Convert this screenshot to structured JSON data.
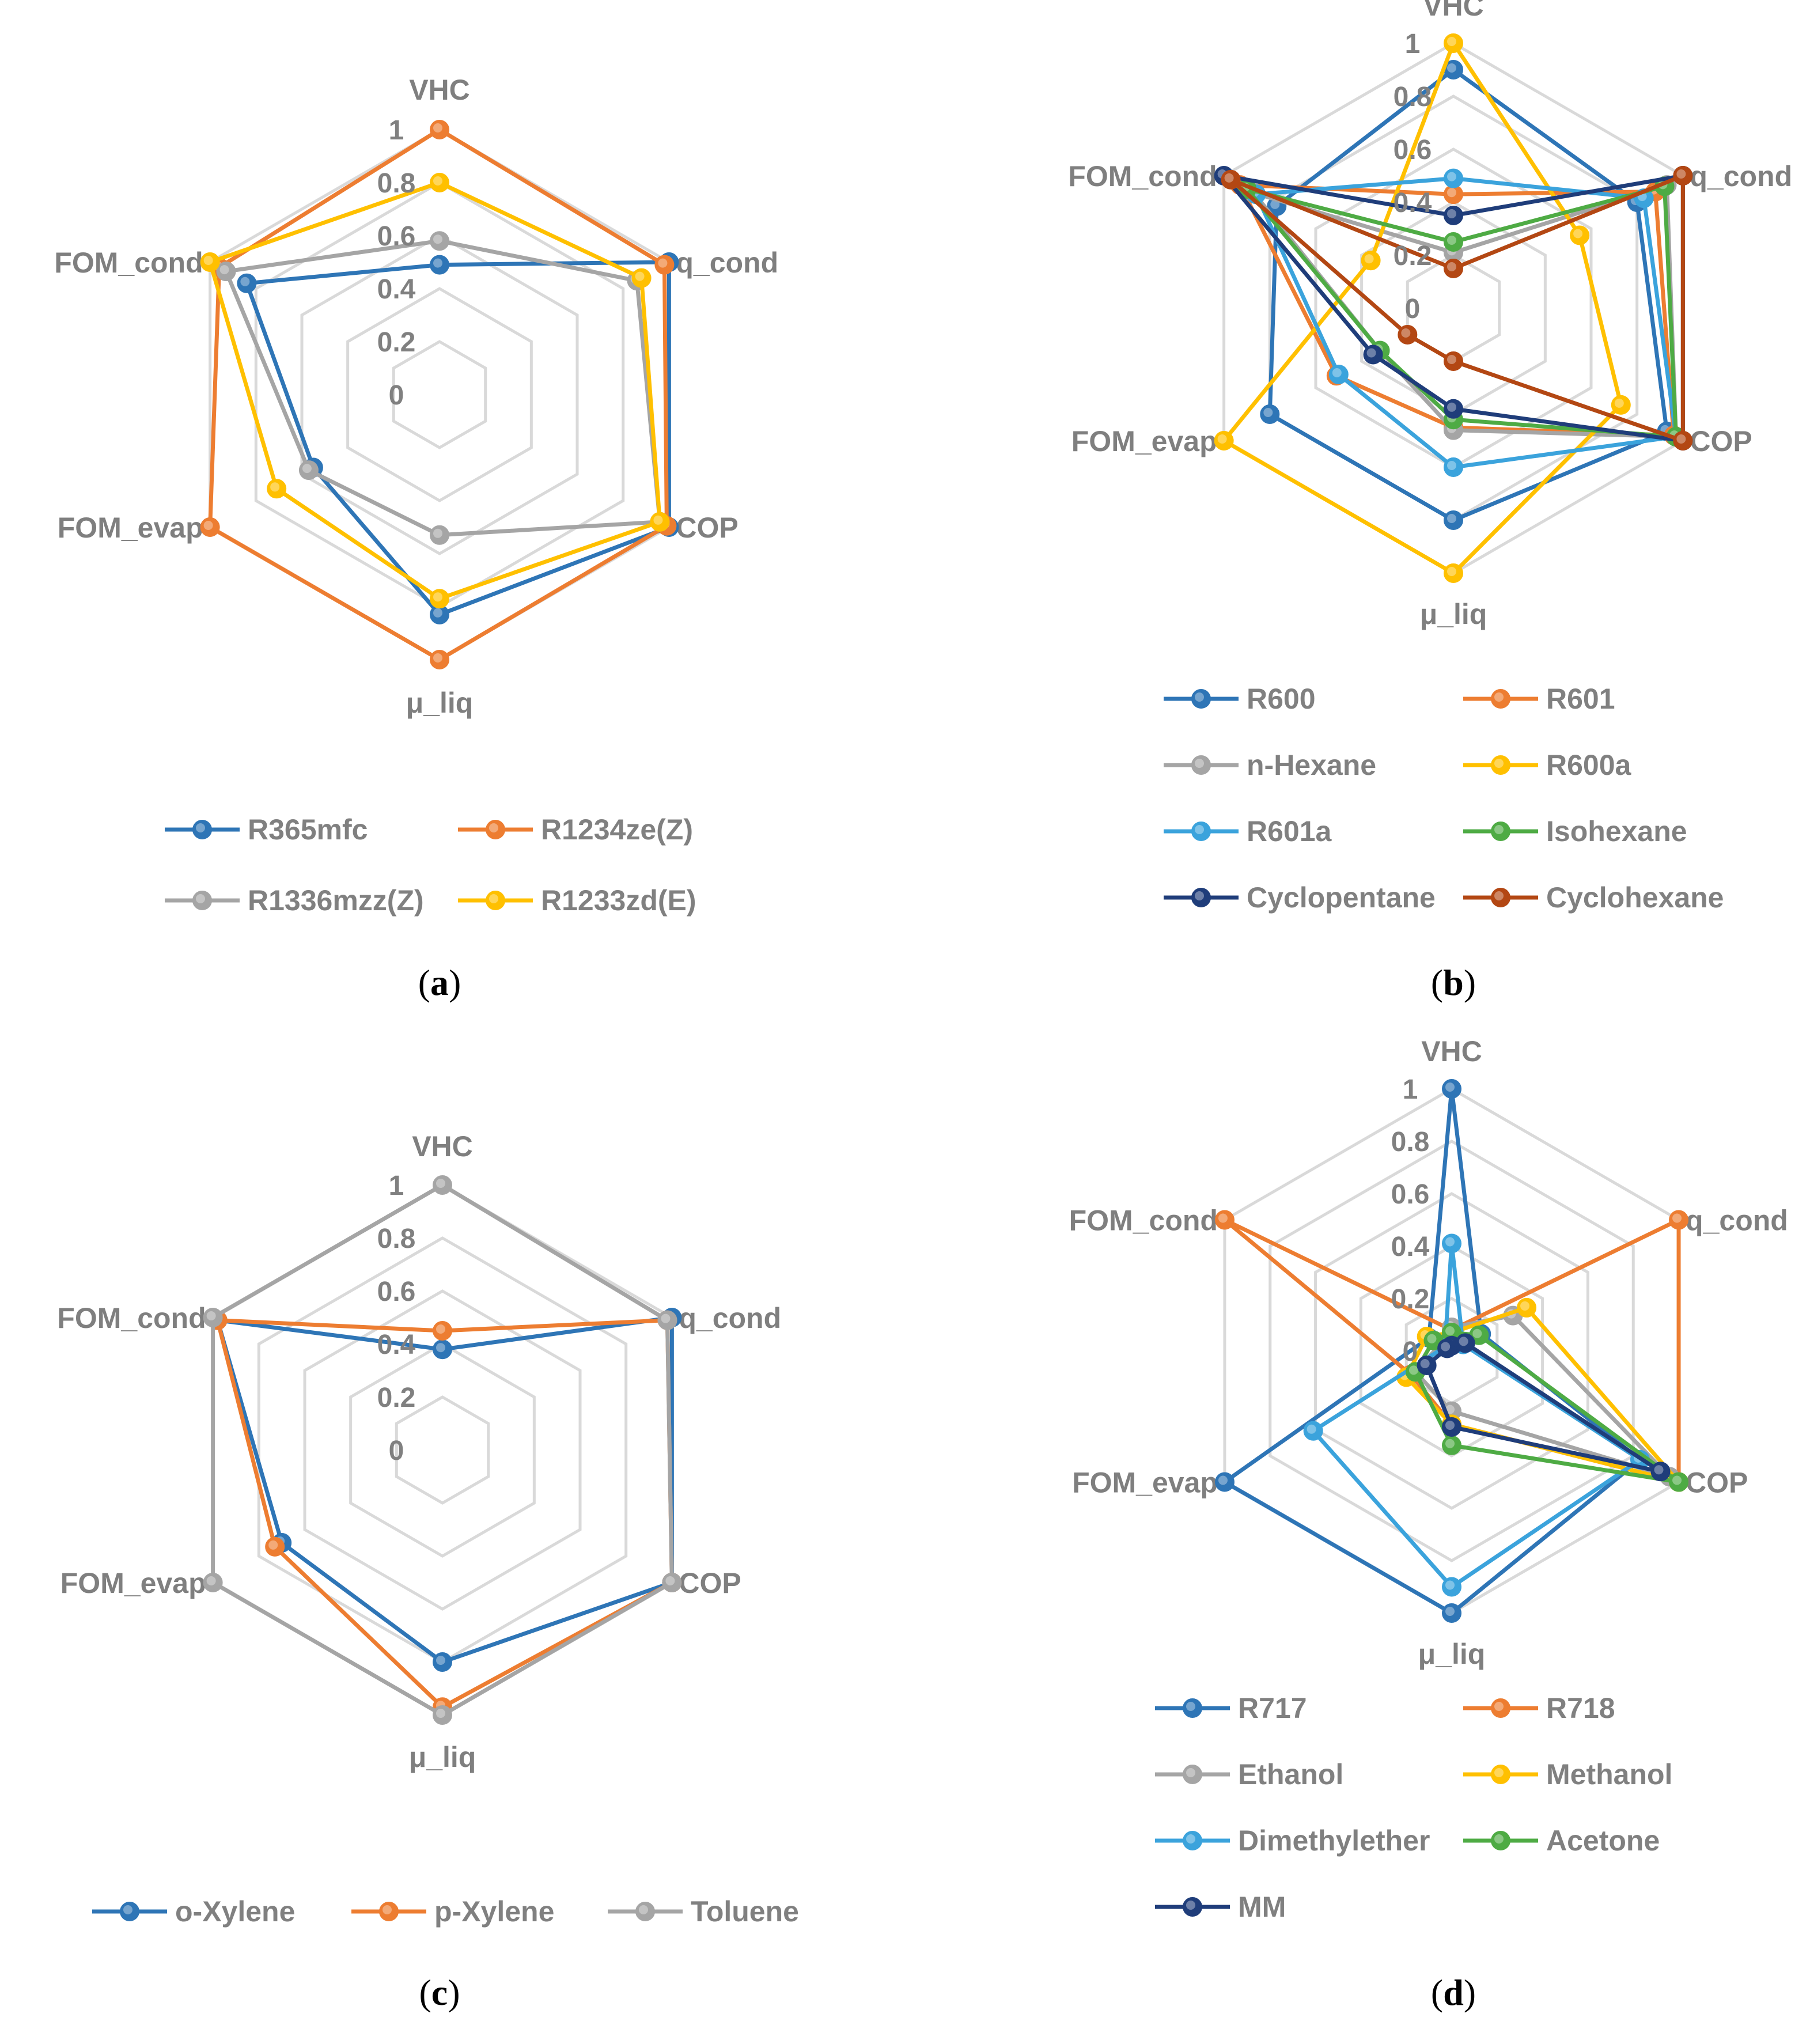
{
  "chart_data": [
    {
      "type": "radar",
      "panel_label": "(a)",
      "axes": [
        "VHC",
        "q_cond",
        "COP",
        "μ_liq",
        "FOM_evap",
        "FOM_cond"
      ],
      "ticks": [
        "0",
        "0.2",
        "0.4",
        "0.6",
        "0.8",
        "1"
      ],
      "range": [
        0,
        1
      ],
      "grid": true,
      "legend_position": "bottom",
      "series": [
        {
          "name": "R365mfc",
          "color": "#2e75b6",
          "values": [
            0.49,
            1.0,
            1.0,
            0.83,
            0.55,
            0.84
          ]
        },
        {
          "name": "R1234ze(Z)",
          "color": "#ed7d31",
          "values": [
            1.0,
            0.98,
            0.99,
            1.0,
            1.0,
            0.96
          ]
        },
        {
          "name": "R1336mzz(Z)",
          "color": "#a5a5a5",
          "values": [
            0.58,
            0.86,
            0.96,
            0.53,
            0.57,
            0.93
          ]
        },
        {
          "name": "R1233zd(E)",
          "color": "#ffc000",
          "values": [
            0.8,
            0.88,
            0.96,
            0.77,
            0.71,
            1.0
          ]
        }
      ]
    },
    {
      "type": "radar",
      "panel_label": "(b)",
      "axes": [
        "VHC",
        "q_cond",
        "COP",
        "μ_liq",
        "FOM_evap",
        "FOM_cond"
      ],
      "ticks": [
        "0",
        "0.2",
        "0.4",
        "0.6",
        "0.8",
        "1"
      ],
      "range": [
        0,
        1
      ],
      "grid": true,
      "legend_position": "bottom",
      "series": [
        {
          "name": "R600",
          "color": "#2e75b6",
          "values": [
            0.9,
            0.8,
            0.93,
            0.8,
            0.8,
            0.77
          ]
        },
        {
          "name": "R601",
          "color": "#ed7d31",
          "values": [
            0.43,
            0.88,
            0.96,
            0.45,
            0.51,
            0.93
          ]
        },
        {
          "name": "n-Hexane",
          "color": "#a5a5a5",
          "values": [
            0.21,
            0.93,
            0.97,
            0.46,
            0.32,
            0.87
          ]
        },
        {
          "name": "R600a",
          "color": "#ffc000",
          "values": [
            1.0,
            0.55,
            0.73,
            1.0,
            1.0,
            0.36
          ]
        },
        {
          "name": "R601a",
          "color": "#3ba3dc",
          "values": [
            0.49,
            0.83,
            0.97,
            0.6,
            0.5,
            0.86
          ]
        },
        {
          "name": "Isohexane",
          "color": "#4eab44",
          "values": [
            0.25,
            0.92,
            0.97,
            0.42,
            0.32,
            0.9
          ]
        },
        {
          "name": "Cyclopentane",
          "color": "#1f3d7a",
          "values": [
            0.35,
            1.0,
            1.0,
            0.38,
            0.35,
            1.0
          ]
        },
        {
          "name": "Cyclohexane",
          "color": "#b34713",
          "values": [
            0.15,
            1.0,
            1.0,
            0.2,
            0.2,
            0.97
          ]
        }
      ]
    },
    {
      "type": "radar",
      "panel_label": "(c)",
      "axes": [
        "VHC",
        "q_cond",
        "COP",
        "μ_liq",
        "FOM_evap",
        "FOM_cond"
      ],
      "ticks": [
        "0",
        "0.2",
        "0.4",
        "0.6",
        "0.8",
        "1"
      ],
      "range": [
        0,
        1
      ],
      "grid": true,
      "legend_position": "bottom",
      "series": [
        {
          "name": "o-Xylene",
          "color": "#2e75b6",
          "values": [
            0.38,
            1.0,
            1.0,
            0.8,
            0.7,
            0.98
          ]
        },
        {
          "name": "p-Xylene",
          "color": "#ed7d31",
          "values": [
            0.45,
            0.98,
            1.0,
            0.97,
            0.73,
            0.98
          ]
        },
        {
          "name": "Toluene",
          "color": "#a5a5a5",
          "values": [
            1.0,
            0.98,
            1.0,
            1.0,
            1.0,
            1.0
          ]
        }
      ]
    },
    {
      "type": "radar",
      "panel_label": "(d)",
      "axes": [
        "VHC",
        "q_cond",
        "COP",
        "μ_liq",
        "FOM_evap",
        "FOM_cond"
      ],
      "ticks": [
        "0",
        "0.2",
        "0.4",
        "0.6",
        "0.8",
        "1"
      ],
      "range": [
        0,
        1
      ],
      "grid": true,
      "legend_position": "bottom",
      "series": [
        {
          "name": "R717",
          "color": "#2e75b6",
          "values": [
            1.0,
            0.13,
            0.83,
            1.0,
            1.0,
            0.1
          ]
        },
        {
          "name": "R718",
          "color": "#ed7d31",
          "values": [
            0.08,
            1.0,
            1.0,
            0.28,
            0.18,
            1.0
          ]
        },
        {
          "name": "Ethanol",
          "color": "#a5a5a5",
          "values": [
            0.09,
            0.27,
            0.96,
            0.23,
            0.16,
            0.05
          ]
        },
        {
          "name": "Methanol",
          "color": "#ffc000",
          "values": [
            0.07,
            0.33,
            1.0,
            0.28,
            0.2,
            0.11
          ]
        },
        {
          "name": "Dimethylether",
          "color": "#3ba3dc",
          "values": [
            0.41,
            0.05,
            0.83,
            0.9,
            0.61,
            0.03
          ]
        },
        {
          "name": "Acetone",
          "color": "#4eab44",
          "values": [
            0.07,
            0.12,
            1.0,
            0.36,
            0.16,
            0.08
          ]
        },
        {
          "name": "MM",
          "color": "#1f3d7a",
          "values": [
            0.02,
            0.06,
            0.92,
            0.29,
            0.11,
            0.02
          ]
        }
      ]
    }
  ]
}
